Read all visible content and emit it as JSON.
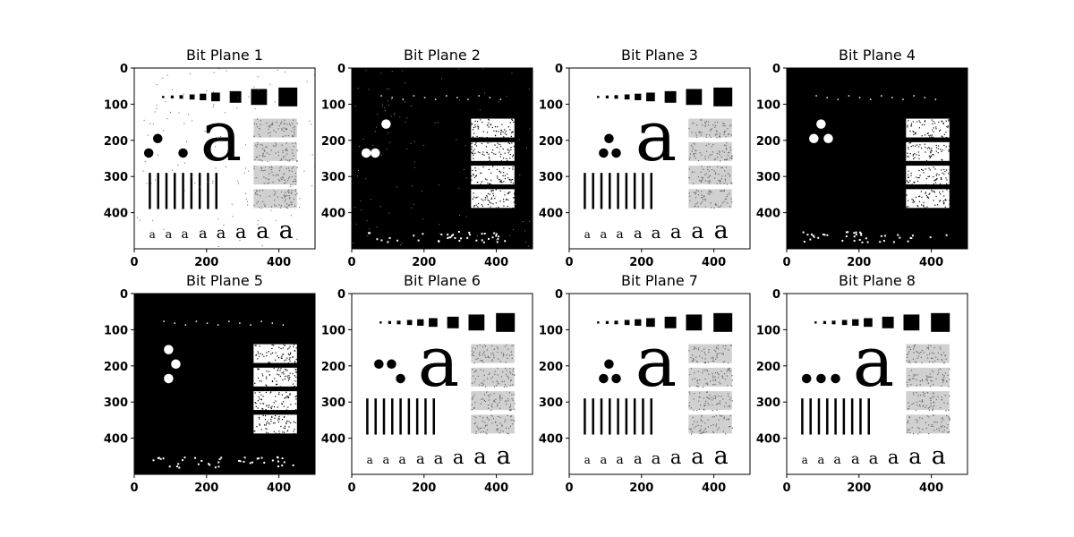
{
  "chart_data": {
    "type": "image-grid",
    "xlim": [
      0,
      500
    ],
    "ylim": [
      500,
      0
    ],
    "xticks": [
      0,
      200,
      400
    ],
    "yticks": [
      0,
      100,
      200,
      300,
      400
    ],
    "panels": [
      {
        "title": "Bit Plane 1",
        "background": "white",
        "invert": false,
        "noise": true,
        "dots": [
          [
            40,
            235
          ],
          [
            70,
            235
          ],
          [
            95,
            195
          ],
          [
            135,
            235
          ],
          [
            65,
            195
          ],
          [
            110,
            195
          ],
          [
            85,
            155
          ]
        ],
        "dots_fill": [
          "#000",
          "#fff",
          "#fff",
          "#000",
          "#000",
          "#fff",
          "#fff"
        ]
      },
      {
        "title": "Bit Plane 2",
        "background": "black",
        "invert": true,
        "noise": true,
        "dots": [
          [
            95,
            155
          ],
          [
            60,
            195
          ],
          [
            40,
            235
          ],
          [
            65,
            235
          ]
        ],
        "dots_fill": [
          "#fff",
          "#000",
          "#fff",
          "#fff"
        ]
      },
      {
        "title": "Bit Plane 3",
        "background": "white",
        "invert": false,
        "noise": false,
        "dots": [
          [
            110,
            195
          ],
          [
            95,
            235
          ],
          [
            130,
            235
          ]
        ],
        "dots_fill": [
          "#000",
          "#000",
          "#000"
        ]
      },
      {
        "title": "Bit Plane 4",
        "background": "black",
        "invert": true,
        "noise": false,
        "dots": [
          [
            95,
            155
          ],
          [
            75,
            195
          ],
          [
            115,
            195
          ]
        ],
        "dots_fill": [
          "#fff",
          "#fff",
          "#fff"
        ]
      },
      {
        "title": "Bit Plane 5",
        "background": "black",
        "invert": true,
        "noise": false,
        "dots": [
          [
            95,
            155
          ],
          [
            115,
            195
          ],
          [
            95,
            235
          ]
        ],
        "dots_fill": [
          "#fff",
          "#fff",
          "#fff"
        ]
      },
      {
        "title": "Bit Plane 6",
        "background": "white",
        "invert": false,
        "noise": false,
        "dots": [
          [
            75,
            195
          ],
          [
            110,
            195
          ],
          [
            135,
            235
          ]
        ],
        "dots_fill": [
          "#000",
          "#000",
          "#000"
        ]
      },
      {
        "title": "Bit Plane 7",
        "background": "white",
        "invert": false,
        "noise": false,
        "dots": [
          [
            110,
            195
          ],
          [
            95,
            235
          ],
          [
            130,
            235
          ]
        ],
        "dots_fill": [
          "#000",
          "#000",
          "#000"
        ]
      },
      {
        "title": "Bit Plane 8",
        "background": "white",
        "invert": false,
        "noise": false,
        "dots": [
          [
            55,
            235
          ],
          [
            95,
            235
          ],
          [
            135,
            235
          ]
        ],
        "dots_fill": [
          "#000",
          "#000",
          "#000"
        ]
      }
    ]
  }
}
